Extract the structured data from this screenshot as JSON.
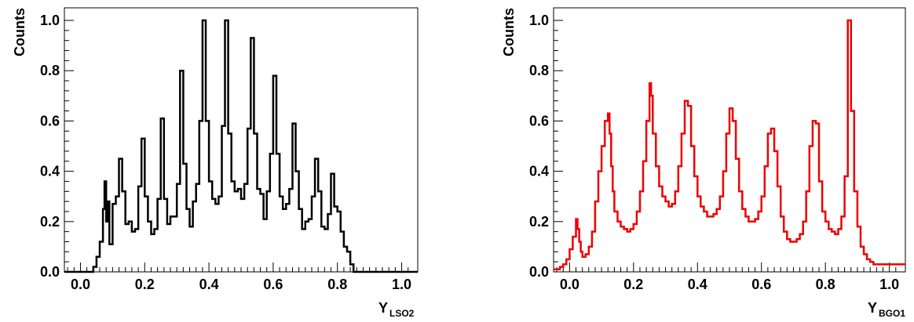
{
  "chart_data": [
    {
      "type": "line",
      "step": true,
      "color": "#000000",
      "ylabel": "Counts",
      "xlabel_main": "Y",
      "xlabel_sub": "LSO2",
      "xlim": [
        -0.05,
        1.05
      ],
      "ylim": [
        0,
        1.05
      ],
      "xticks": [
        0.0,
        0.2,
        0.4,
        0.6,
        0.8,
        1.0
      ],
      "xtick_labels": [
        "0.0",
        "0.2",
        "0.4",
        "0.6",
        "0.8",
        "1.0"
      ],
      "yticks": [
        0.0,
        0.2,
        0.4,
        0.6,
        0.8,
        1.0
      ],
      "ytick_labels": [
        "0.0",
        "0.2",
        "0.4",
        "0.6",
        "0.8",
        "1.0"
      ],
      "grid": false,
      "series": [
        {
          "x": [
            -0.05,
            0.04,
            0.05,
            0.06,
            0.07,
            0.075,
            0.08,
            0.085,
            0.09,
            0.1,
            0.11,
            0.12,
            0.13,
            0.14,
            0.15,
            0.16,
            0.17,
            0.18,
            0.19,
            0.2,
            0.21,
            0.22,
            0.23,
            0.24,
            0.25,
            0.26,
            0.27,
            0.28,
            0.29,
            0.3,
            0.31,
            0.32,
            0.33,
            0.34,
            0.35,
            0.36,
            0.37,
            0.38,
            0.39,
            0.4,
            0.41,
            0.42,
            0.43,
            0.44,
            0.45,
            0.46,
            0.47,
            0.48,
            0.49,
            0.5,
            0.51,
            0.52,
            0.53,
            0.54,
            0.55,
            0.56,
            0.57,
            0.58,
            0.59,
            0.6,
            0.61,
            0.62,
            0.63,
            0.64,
            0.65,
            0.66,
            0.67,
            0.68,
            0.69,
            0.7,
            0.71,
            0.72,
            0.73,
            0.74,
            0.75,
            0.76,
            0.77,
            0.78,
            0.79,
            0.8,
            0.81,
            0.82,
            0.83,
            0.84,
            0.85,
            0.86,
            0.87,
            0.88,
            0.89,
            0.9,
            0.91,
            0.92,
            0.93,
            0.94,
            0.95,
            0.96,
            0.97,
            0.98,
            1.05
          ],
          "y": [
            0,
            0.02,
            0.06,
            0.12,
            0.25,
            0.36,
            0.2,
            0.28,
            0.11,
            0.27,
            0.3,
            0.45,
            0.32,
            0.19,
            0.2,
            0.16,
            0.17,
            0.34,
            0.53,
            0.3,
            0.2,
            0.15,
            0.17,
            0.29,
            0.61,
            0.29,
            0.19,
            0.22,
            0.22,
            0.35,
            0.8,
            0.43,
            0.25,
            0.18,
            0.28,
            0.35,
            0.6,
            1.0,
            0.6,
            0.36,
            0.29,
            0.27,
            0.3,
            0.58,
            1.0,
            0.55,
            0.36,
            0.32,
            0.33,
            0.29,
            0.35,
            0.57,
            0.93,
            0.55,
            0.33,
            0.31,
            0.21,
            0.32,
            0.47,
            0.78,
            0.47,
            0.3,
            0.25,
            0.27,
            0.33,
            0.59,
            0.4,
            0.25,
            0.17,
            0.2,
            0.21,
            0.3,
            0.45,
            0.32,
            0.18,
            0.17,
            0.23,
            0.39,
            0.26,
            0.24,
            0.16,
            0.1,
            0.08,
            0.03,
            0.0,
            0,
            0,
            0,
            0,
            0,
            0,
            0,
            0,
            0,
            0,
            0,
            0,
            0,
            0
          ]
        }
      ]
    },
    {
      "type": "line",
      "step": true,
      "color": "#ee0000",
      "ylabel": "Counts",
      "xlabel_main": "Y",
      "xlabel_sub": "BGO1",
      "xlim": [
        -0.05,
        1.05
      ],
      "ylim": [
        0,
        1.05
      ],
      "xticks": [
        0.0,
        0.2,
        0.4,
        0.6,
        0.8,
        1.0
      ],
      "xtick_labels": [
        "0.0",
        "0.2",
        "0.4",
        "0.6",
        "0.8",
        "1.0"
      ],
      "yticks": [
        0.0,
        0.2,
        0.4,
        0.6,
        0.8,
        1.0
      ],
      "ytick_labels": [
        "0.0",
        "0.2",
        "0.4",
        "0.6",
        "0.8",
        "1.0"
      ],
      "grid": false,
      "series": [
        {
          "x": [
            -0.05,
            -0.04,
            -0.03,
            -0.02,
            -0.01,
            0.0,
            0.01,
            0.02,
            0.025,
            0.03,
            0.035,
            0.04,
            0.05,
            0.06,
            0.07,
            0.08,
            0.09,
            0.1,
            0.11,
            0.12,
            0.125,
            0.13,
            0.135,
            0.14,
            0.15,
            0.16,
            0.17,
            0.18,
            0.19,
            0.2,
            0.21,
            0.22,
            0.23,
            0.24,
            0.25,
            0.255,
            0.26,
            0.27,
            0.28,
            0.29,
            0.3,
            0.31,
            0.32,
            0.33,
            0.34,
            0.35,
            0.36,
            0.37,
            0.38,
            0.39,
            0.4,
            0.41,
            0.42,
            0.43,
            0.44,
            0.45,
            0.46,
            0.47,
            0.48,
            0.49,
            0.5,
            0.51,
            0.52,
            0.53,
            0.54,
            0.55,
            0.56,
            0.57,
            0.58,
            0.59,
            0.6,
            0.61,
            0.62,
            0.63,
            0.64,
            0.65,
            0.66,
            0.67,
            0.68,
            0.69,
            0.7,
            0.71,
            0.72,
            0.73,
            0.74,
            0.75,
            0.76,
            0.77,
            0.78,
            0.79,
            0.8,
            0.81,
            0.82,
            0.83,
            0.84,
            0.85,
            0.86,
            0.87,
            0.88,
            0.89,
            0.9,
            0.91,
            0.92,
            0.93,
            0.94,
            0.95,
            0.96,
            0.965,
            0.97,
            0.98,
            0.99,
            1.0,
            1.01,
            1.02,
            1.03,
            1.04
          ],
          "y": [
            0.01,
            0.01,
            0.02,
            0.03,
            0.05,
            0.09,
            0.14,
            0.21,
            0.17,
            0.12,
            0.08,
            0.06,
            0.07,
            0.1,
            0.16,
            0.28,
            0.4,
            0.5,
            0.6,
            0.63,
            0.55,
            0.42,
            0.32,
            0.24,
            0.2,
            0.18,
            0.17,
            0.16,
            0.17,
            0.19,
            0.24,
            0.32,
            0.44,
            0.6,
            0.75,
            0.7,
            0.55,
            0.42,
            0.34,
            0.3,
            0.28,
            0.26,
            0.27,
            0.32,
            0.42,
            0.55,
            0.68,
            0.66,
            0.5,
            0.38,
            0.3,
            0.26,
            0.24,
            0.22,
            0.22,
            0.23,
            0.25,
            0.3,
            0.4,
            0.55,
            0.65,
            0.6,
            0.45,
            0.32,
            0.25,
            0.22,
            0.2,
            0.2,
            0.21,
            0.24,
            0.3,
            0.42,
            0.55,
            0.57,
            0.48,
            0.34,
            0.22,
            0.16,
            0.13,
            0.12,
            0.12,
            0.13,
            0.15,
            0.2,
            0.32,
            0.5,
            0.6,
            0.59,
            0.36,
            0.24,
            0.2,
            0.17,
            0.16,
            0.15,
            0.17,
            0.22,
            0.38,
            1.0,
            0.64,
            0.32,
            0.18,
            0.1,
            0.07,
            0.05,
            0.04,
            0.03,
            0.03,
            0.03,
            0.03,
            0.03,
            0.03,
            0.03,
            0.03,
            0.03,
            0.03,
            0.03
          ]
        }
      ]
    }
  ]
}
